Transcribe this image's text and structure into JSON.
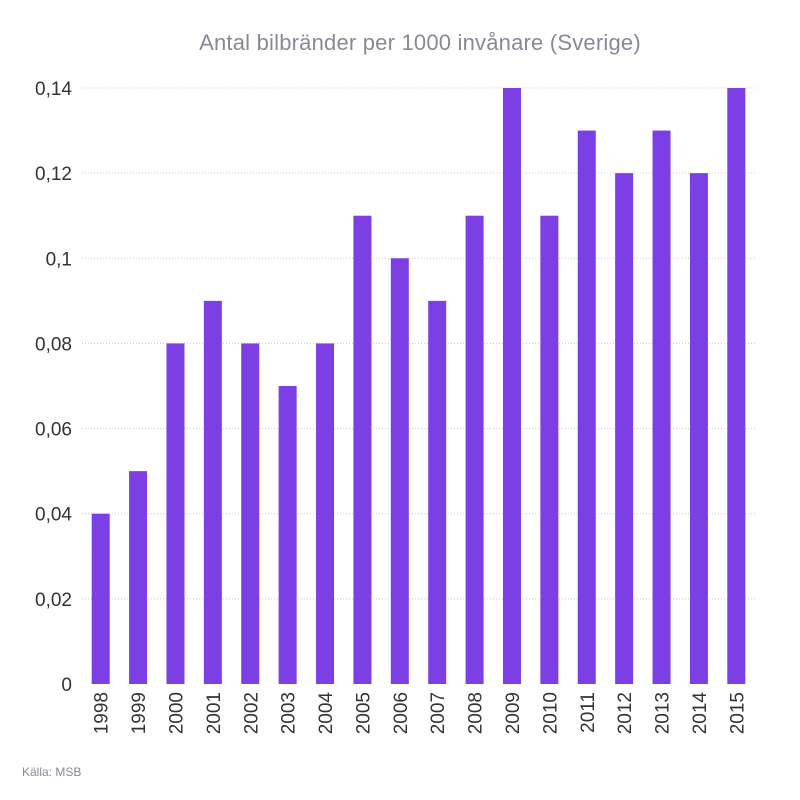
{
  "chart_data": {
    "type": "bar",
    "title": "Antal bilbränder per 1000 invånare (Sverige)",
    "xlabel": "",
    "ylabel": "",
    "categories": [
      "1998",
      "1999",
      "2000",
      "2001",
      "2002",
      "2003",
      "2004",
      "2005",
      "2006",
      "2007",
      "2008",
      "2009",
      "2010",
      "2011",
      "2012",
      "2013",
      "2014",
      "2015"
    ],
    "values": [
      0.04,
      0.05,
      0.08,
      0.09,
      0.08,
      0.07,
      0.08,
      0.11,
      0.1,
      0.09,
      0.11,
      0.14,
      0.11,
      0.13,
      0.12,
      0.13,
      0.12,
      0.14
    ],
    "ylim": [
      0,
      0.14
    ],
    "yticks": [
      0,
      0.02,
      0.04,
      0.06,
      0.08,
      0.1,
      0.12,
      0.14
    ],
    "ytick_labels": [
      "0",
      "0,02",
      "0,04",
      "0,06",
      "0,08",
      "0,1",
      "0,12",
      "0,14"
    ],
    "bar_color": "#7b3fe4",
    "grid": true,
    "legend": "none"
  },
  "source": "Källa: MSB"
}
